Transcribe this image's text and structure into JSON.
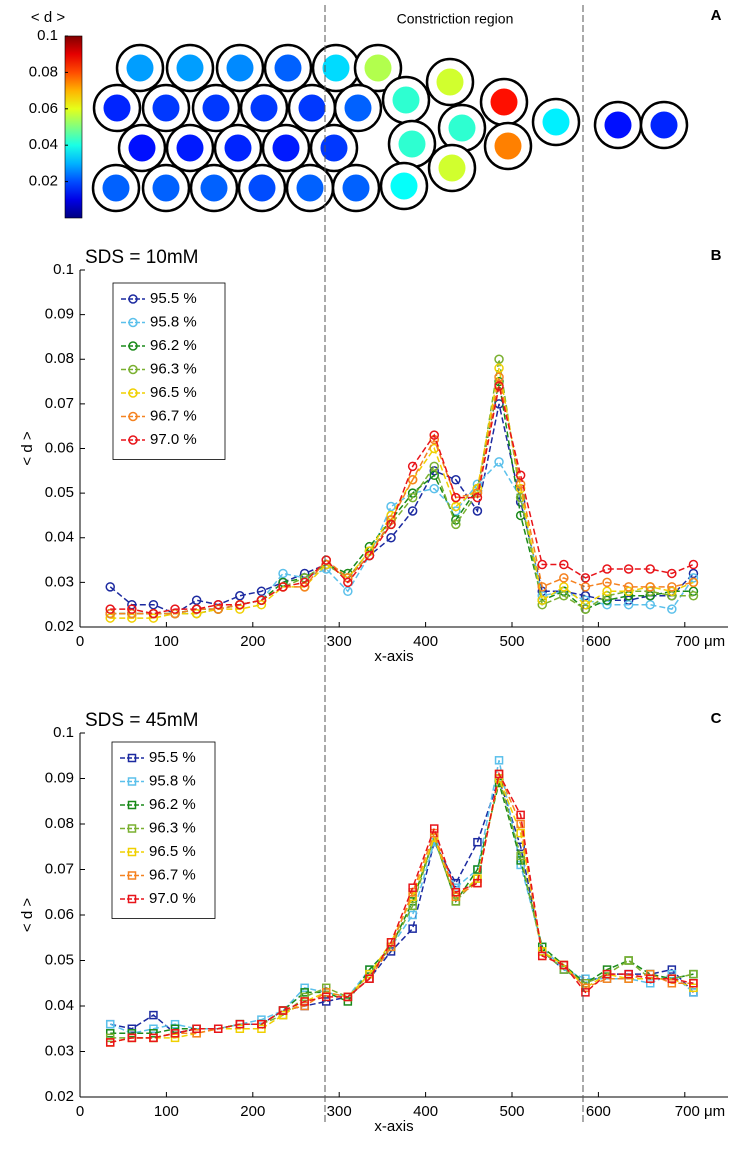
{
  "chart_data": [
    {
      "type": "droplets",
      "panel": "A",
      "annotation": "Constriction region",
      "colorbar_label": "< d >",
      "colormap": "jet",
      "clim": [
        0,
        0.1
      ],
      "cticks": [
        0.02,
        0.04,
        0.06,
        0.08,
        0.1
      ],
      "values": [
        0.028,
        0.028,
        0.026,
        0.022,
        0.034,
        0.055,
        0.016,
        0.018,
        0.018,
        0.018,
        0.018,
        0.022,
        0.042,
        0.014,
        0.015,
        0.016,
        0.015,
        0.018,
        0.042,
        0.022,
        0.022,
        0.022,
        0.02,
        0.022,
        0.022,
        0.038,
        0.058,
        0.042,
        0.058,
        0.086,
        0.075,
        0.036,
        0.014,
        0.016
      ]
    },
    {
      "type": "line",
      "panel": "B",
      "title": "SDS = 10mM",
      "xlabel": "x-axis",
      "ylabel": "< d >",
      "marker": "circle",
      "line_style": "dashed",
      "legend": "upper left",
      "x": [
        35,
        60,
        85,
        110,
        135,
        160,
        185,
        210,
        235,
        260,
        285,
        310,
        335,
        360,
        385,
        410,
        435,
        460,
        485,
        510,
        535,
        560,
        585,
        610,
        635,
        660,
        685,
        710
      ],
      "xlim": [
        0,
        750
      ],
      "xticks": [
        0,
        100,
        200,
        300,
        400,
        500,
        600,
        {
          "value": 700,
          "label": "700 μm"
        }
      ],
      "ylim": [
        0.02,
        0.1
      ],
      "yticks": [
        0.02,
        0.03,
        0.04,
        0.05,
        0.06,
        0.07,
        0.08,
        0.09,
        0.1
      ],
      "series": [
        {
          "name": "95.5 %",
          "color": "#1c2aa0",
          "values": [
            0.029,
            0.025,
            0.025,
            0.023,
            0.026,
            0.025,
            0.027,
            0.028,
            0.03,
            0.032,
            0.034,
            0.031,
            0.036,
            0.04,
            0.046,
            0.055,
            0.053,
            0.046,
            0.07,
            0.048,
            0.028,
            0.028,
            0.027,
            0.026,
            0.026,
            0.027,
            0.027,
            0.032
          ]
        },
        {
          "name": "95.8 %",
          "color": "#5bc0eb",
          "values": [
            0.023,
            0.023,
            0.023,
            0.023,
            0.024,
            0.024,
            0.025,
            0.026,
            0.032,
            0.031,
            0.033,
            0.028,
            0.036,
            0.047,
            0.05,
            0.051,
            0.046,
            0.052,
            0.057,
            0.049,
            0.027,
            0.028,
            0.026,
            0.025,
            0.025,
            0.025,
            0.024,
            0.031
          ]
        },
        {
          "name": "96.2 %",
          "color": "#1a8a1a",
          "values": [
            0.023,
            0.023,
            0.023,
            0.023,
            0.024,
            0.024,
            0.025,
            0.026,
            0.03,
            0.031,
            0.034,
            0.032,
            0.038,
            0.044,
            0.05,
            0.054,
            0.044,
            0.051,
            0.075,
            0.045,
            0.026,
            0.028,
            0.024,
            0.026,
            0.027,
            0.027,
            0.028,
            0.028
          ]
        },
        {
          "name": "96.3 %",
          "color": "#7ab030",
          "values": [
            0.023,
            0.023,
            0.023,
            0.023,
            0.023,
            0.024,
            0.025,
            0.026,
            0.029,
            0.031,
            0.034,
            0.031,
            0.037,
            0.043,
            0.049,
            0.056,
            0.043,
            0.05,
            0.08,
            0.049,
            0.025,
            0.027,
            0.024,
            0.027,
            0.028,
            0.028,
            0.027,
            0.027
          ]
        },
        {
          "name": "96.5 %",
          "color": "#f0d000",
          "values": [
            0.022,
            0.022,
            0.022,
            0.023,
            0.023,
            0.024,
            0.024,
            0.025,
            0.029,
            0.029,
            0.034,
            0.031,
            0.037,
            0.045,
            0.053,
            0.06,
            0.047,
            0.051,
            0.078,
            0.051,
            0.026,
            0.029,
            0.025,
            0.028,
            0.028,
            0.029,
            0.028,
            0.03
          ]
        },
        {
          "name": "96.7 %",
          "color": "#f58220",
          "values": [
            0.023,
            0.023,
            0.023,
            0.023,
            0.024,
            0.024,
            0.025,
            0.026,
            0.029,
            0.029,
            0.035,
            0.031,
            0.036,
            0.044,
            0.053,
            0.062,
            0.049,
            0.05,
            0.076,
            0.052,
            0.029,
            0.031,
            0.029,
            0.03,
            0.029,
            0.029,
            0.029,
            0.03
          ]
        },
        {
          "name": "97.0 %",
          "color": "#e8141a",
          "values": [
            0.024,
            0.024,
            0.023,
            0.024,
            0.024,
            0.025,
            0.025,
            0.026,
            0.029,
            0.03,
            0.035,
            0.03,
            0.036,
            0.043,
            0.056,
            0.063,
            0.049,
            0.049,
            0.074,
            0.054,
            0.034,
            0.034,
            0.031,
            0.033,
            0.033,
            0.033,
            0.032,
            0.034
          ]
        }
      ]
    },
    {
      "type": "line",
      "panel": "C",
      "title": "SDS = 45mM",
      "xlabel": "x-axis",
      "ylabel": "< d >",
      "marker": "square",
      "line_style": "dashed",
      "legend": "upper left",
      "x": [
        35,
        60,
        85,
        110,
        135,
        160,
        185,
        210,
        235,
        260,
        285,
        310,
        335,
        360,
        385,
        410,
        435,
        460,
        485,
        510,
        535,
        560,
        585,
        610,
        635,
        660,
        685,
        710
      ],
      "xlim": [
        0,
        750
      ],
      "xticks": [
        0,
        100,
        200,
        300,
        400,
        500,
        600,
        {
          "value": 700,
          "label": "700 μm"
        }
      ],
      "ylim": [
        0.02,
        0.1
      ],
      "yticks": [
        0.02,
        0.03,
        0.04,
        0.05,
        0.06,
        0.07,
        0.08,
        0.09,
        0.1
      ],
      "series": [
        {
          "name": "95.5 %",
          "color": "#1c2aa0",
          "values": [
            0.036,
            0.035,
            0.038,
            0.034,
            0.035,
            0.035,
            0.036,
            0.036,
            0.039,
            0.04,
            0.041,
            0.042,
            0.046,
            0.052,
            0.057,
            0.076,
            0.067,
            0.076,
            0.09,
            0.075,
            0.052,
            0.048,
            0.045,
            0.047,
            0.047,
            0.047,
            0.048,
            0.043
          ]
        },
        {
          "name": "95.8 %",
          "color": "#5bc0eb",
          "values": [
            0.036,
            0.034,
            0.035,
            0.036,
            0.035,
            0.035,
            0.036,
            0.037,
            0.039,
            0.044,
            0.043,
            0.042,
            0.048,
            0.053,
            0.06,
            0.076,
            0.066,
            0.07,
            0.094,
            0.071,
            0.053,
            0.048,
            0.046,
            0.046,
            0.046,
            0.045,
            0.047,
            0.043
          ]
        },
        {
          "name": "96.2 %",
          "color": "#1a8a1a",
          "values": [
            0.034,
            0.034,
            0.034,
            0.035,
            0.035,
            0.035,
            0.036,
            0.036,
            0.039,
            0.043,
            0.043,
            0.041,
            0.048,
            0.053,
            0.063,
            0.077,
            0.063,
            0.07,
            0.089,
            0.072,
            0.053,
            0.049,
            0.045,
            0.048,
            0.05,
            0.047,
            0.046,
            0.047
          ]
        },
        {
          "name": "96.3 %",
          "color": "#7ab030",
          "values": [
            0.033,
            0.033,
            0.033,
            0.034,
            0.035,
            0.035,
            0.036,
            0.036,
            0.038,
            0.042,
            0.044,
            0.042,
            0.047,
            0.053,
            0.062,
            0.077,
            0.063,
            0.068,
            0.09,
            0.073,
            0.052,
            0.048,
            0.045,
            0.047,
            0.05,
            0.046,
            0.046,
            0.047
          ]
        },
        {
          "name": "96.5 %",
          "color": "#f0d000",
          "values": [
            0.032,
            0.033,
            0.033,
            0.033,
            0.034,
            0.035,
            0.035,
            0.035,
            0.038,
            0.041,
            0.043,
            0.042,
            0.047,
            0.054,
            0.064,
            0.077,
            0.064,
            0.068,
            0.09,
            0.078,
            0.052,
            0.049,
            0.044,
            0.047,
            0.046,
            0.046,
            0.046,
            0.044
          ]
        },
        {
          "name": "96.7 %",
          "color": "#f58220",
          "values": [
            0.032,
            0.033,
            0.033,
            0.034,
            0.034,
            0.035,
            0.036,
            0.036,
            0.039,
            0.04,
            0.043,
            0.042,
            0.046,
            0.053,
            0.065,
            0.078,
            0.064,
            0.067,
            0.091,
            0.08,
            0.051,
            0.049,
            0.044,
            0.046,
            0.046,
            0.047,
            0.045,
            0.045
          ]
        },
        {
          "name": "97.0 %",
          "color": "#e8141a",
          "values": [
            0.032,
            0.033,
            0.033,
            0.034,
            0.035,
            0.035,
            0.036,
            0.036,
            0.039,
            0.041,
            0.042,
            0.042,
            0.046,
            0.054,
            0.066,
            0.079,
            0.065,
            0.067,
            0.091,
            0.082,
            0.051,
            0.049,
            0.043,
            0.047,
            0.047,
            0.046,
            0.046,
            0.045
          ]
        }
      ]
    }
  ]
}
